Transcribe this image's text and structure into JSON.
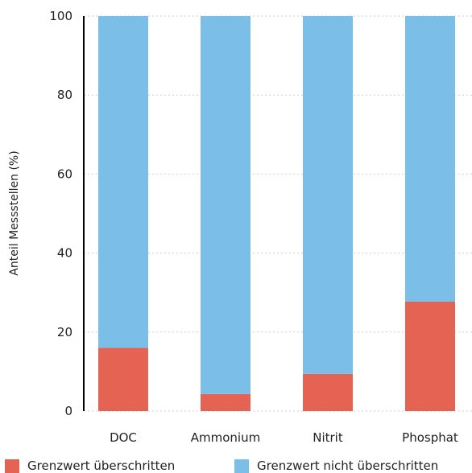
{
  "chart_data": {
    "type": "bar",
    "stacked": true,
    "categories": [
      "DOC",
      "Ammonium",
      "Nitrit",
      "Phosphat"
    ],
    "series": [
      {
        "name": "Grenzwert überschritten",
        "values": [
          16,
          4.3,
          9.4,
          27.7
        ],
        "color": "#e56353"
      },
      {
        "name": "Grenzwert nicht überschritten",
        "values": [
          84,
          95.7,
          90.6,
          72.3
        ],
        "color": "#7bbfe8"
      }
    ],
    "title": "",
    "xlabel": "",
    "ylabel": "Anteil Messstellen (%)",
    "ylim": [
      0,
      100
    ],
    "yticks": [
      0,
      20,
      40,
      60,
      80,
      100
    ],
    "grid": true,
    "legend_position": "bottom"
  }
}
